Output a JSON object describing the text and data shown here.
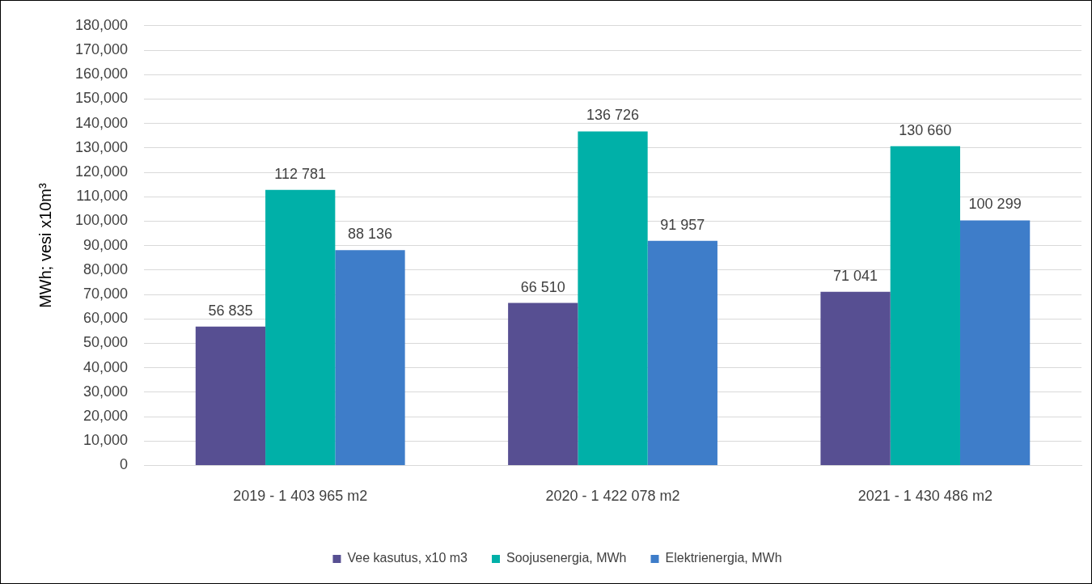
{
  "chart_data": {
    "type": "bar",
    "ylabel": "MWh; vesi x10m³",
    "categories": [
      "2019 - 1 403 965 m2",
      "2020 - 1 422 078 m2",
      "2021 - 1 430 486 m2"
    ],
    "series": [
      {
        "name": "Vee kasutus, x10 m3",
        "color": "#574f92",
        "values": [
          56835,
          66510,
          71041
        ],
        "value_labels": [
          "56 835",
          "66 510",
          "71 041"
        ]
      },
      {
        "name": "Soojusenergia, MWh",
        "color": "#00b0a8",
        "values": [
          112781,
          136726,
          130660
        ],
        "value_labels": [
          "112 781",
          "136 726",
          "130 660"
        ]
      },
      {
        "name": "Elektrienergia, MWh",
        "color": "#3e7dc9",
        "values": [
          88136,
          91957,
          100299
        ],
        "value_labels": [
          "88 136",
          "91 957",
          "100 299"
        ]
      }
    ],
    "ylim": [
      0,
      180000
    ],
    "yticks": [
      0,
      {
        "value": 10000,
        "label": "10,000"
      },
      {
        "value": 20000,
        "label": "20,000"
      },
      {
        "value": 30000,
        "label": "30,000"
      },
      {
        "value": 40000,
        "label": "40,000"
      },
      {
        "value": 50000,
        "label": "50,000"
      },
      {
        "value": 60000,
        "label": "60,000"
      },
      {
        "value": 70000,
        "label": "70,000"
      },
      {
        "value": 80000,
        "label": "80,000"
      },
      {
        "value": 90000,
        "label": "90,000"
      },
      {
        "value": 100000,
        "label": "100,000"
      },
      {
        "value": 110000,
        "label": "110,000"
      },
      {
        "value": 120000,
        "label": "120,000"
      },
      {
        "value": 130000,
        "label": "130,000"
      },
      {
        "value": 140000,
        "label": "140,000"
      },
      {
        "value": 150000,
        "label": "150,000"
      },
      {
        "value": 160000,
        "label": "160,000"
      },
      {
        "value": 170000,
        "label": "170,000"
      },
      {
        "value": 180000,
        "label": "180,000"
      }
    ],
    "grid": "y",
    "legend": "bottom"
  }
}
